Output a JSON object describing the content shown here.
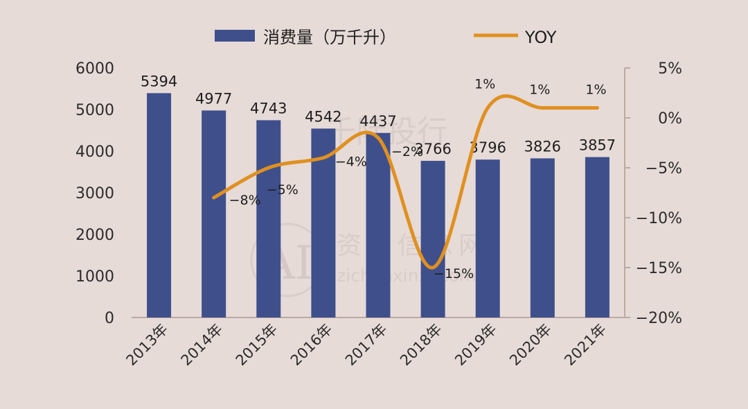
{
  "chart_data": {
    "type": "bar+line",
    "categories": [
      "2013年",
      "2014年",
      "2015年",
      "2016年",
      "2017年",
      "2018年",
      "2019年",
      "2020年",
      "2021年"
    ],
    "series": [
      {
        "name": "消费量（万千升）",
        "type": "bar",
        "axis": "left",
        "values": [
          5394,
          4977,
          4743,
          4542,
          4437,
          3766,
          3796,
          3826,
          3857
        ],
        "labels": [
          "5394",
          "4977",
          "4743",
          "4542",
          "4437",
          "3766",
          "3796",
          "3826",
          "3857"
        ],
        "color": "#3f4f8c"
      },
      {
        "name": "YOY",
        "type": "line",
        "axis": "right",
        "values": [
          null,
          -8,
          -5,
          -4,
          -2,
          -15,
          1,
          1,
          1
        ],
        "labels": [
          null,
          "-8%",
          "-5%",
          "-4%",
          "-2%",
          "-15%",
          "1%",
          "1%",
          "1%"
        ],
        "color": "#e09020"
      }
    ],
    "y_left": {
      "range": [
        0,
        6000
      ],
      "ticks": [
        "0",
        "1000",
        "2000",
        "3000",
        "4000",
        "5000",
        "6000"
      ]
    },
    "y_right": {
      "range": [
        -20,
        5
      ],
      "ticks": [
        "-20%",
        "-15%",
        "-10%",
        "-5%",
        "0%",
        "5%"
      ],
      "tick_values": [
        -20,
        -15,
        -10,
        -5,
        0,
        5
      ]
    },
    "legend": {
      "position": "top"
    }
  },
  "watermarks": [
    "千际投行",
    "资产信息网",
    "zichanxinxi.com"
  ]
}
